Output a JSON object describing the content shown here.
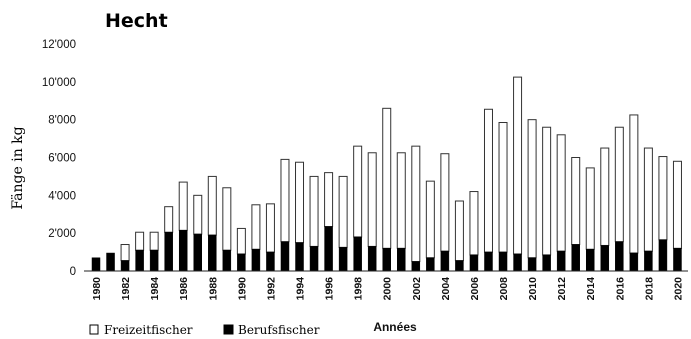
{
  "chart_data": {
    "type": "bar",
    "stacked": true,
    "title": "Hecht",
    "ylabel": "Fänge in kg",
    "xlabel": "Années",
    "ylim": [
      0,
      12000
    ],
    "yticks": [
      0,
      2000,
      4000,
      6000,
      8000,
      10000,
      12000
    ],
    "ytick_labels": [
      "0",
      "2'000",
      "4'000",
      "6'000",
      "8'000",
      "10'000",
      "12'000"
    ],
    "x_tick_labels": [
      "1980",
      "1982",
      "1984",
      "1986",
      "1988",
      "1990",
      "1992",
      "1994",
      "1996",
      "1998",
      "2000",
      "2002",
      "2004",
      "2006",
      "2008",
      "2010",
      "2012",
      "2014",
      "2016",
      "2018",
      "2020"
    ],
    "categories": [
      "1980",
      "1981",
      "1982",
      "1983",
      "1984",
      "1985",
      "1986",
      "1987",
      "1988",
      "1989",
      "1990",
      "1991",
      "1992",
      "1993",
      "1994",
      "1995",
      "1996",
      "1997",
      "1998",
      "1999",
      "2000",
      "2001",
      "2002",
      "2003",
      "2004",
      "2005",
      "2006",
      "2007",
      "2008",
      "2009",
      "2010",
      "2011",
      "2012",
      "2013",
      "2014",
      "2015",
      "2016",
      "2017",
      "2018",
      "2019",
      "2020"
    ],
    "series": [
      {
        "name": "Berufsfischer",
        "color": "#000000",
        "values": [
          700,
          950,
          550,
          1100,
          1100,
          2050,
          2150,
          1950,
          1900,
          1100,
          900,
          1150,
          1000,
          1550,
          1500,
          1300,
          2350,
          1250,
          1800,
          1300,
          1200,
          1200,
          500,
          700,
          1050,
          550,
          850,
          1000,
          1000,
          900,
          700,
          850,
          1050,
          1400,
          1150,
          1350,
          1550,
          950,
          1050,
          1650,
          1200
        ]
      },
      {
        "name": "Freizeitfischer",
        "color": "#ffffff",
        "values": [
          0,
          0,
          850,
          950,
          950,
          1350,
          2550,
          2050,
          3100,
          3300,
          1350,
          2350,
          2550,
          4350,
          4250,
          3700,
          2850,
          3750,
          4800,
          4950,
          7400,
          5050,
          6100,
          4050,
          5150,
          3150,
          3350,
          7550,
          6850,
          9350,
          7300,
          6750,
          6150,
          4600,
          4300,
          5150,
          6050,
          7300,
          5450,
          4400,
          4600
        ]
      }
    ],
    "legend": {
      "placement": "bottom-left",
      "items": [
        {
          "label": "Freizeitfischer",
          "color": "#ffffff"
        },
        {
          "label": "Berufsfischer",
          "color": "#000000"
        }
      ]
    },
    "grid": false
  }
}
